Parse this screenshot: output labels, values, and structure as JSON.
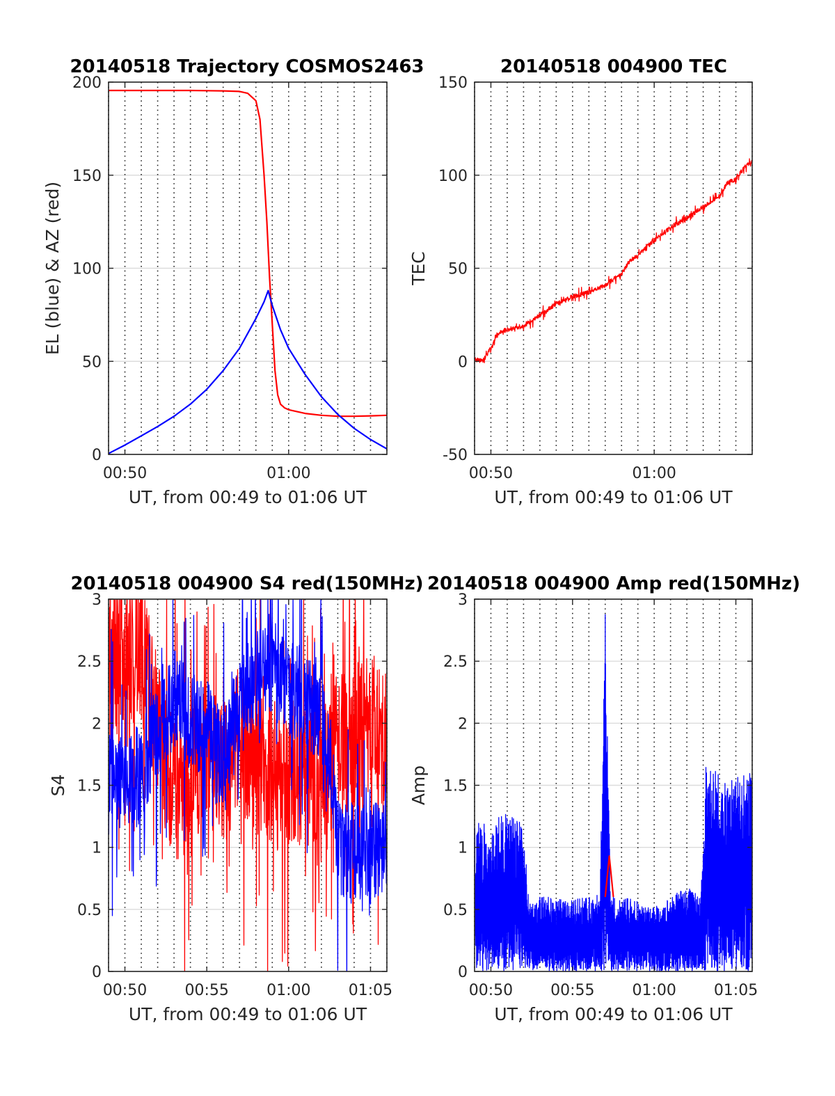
{
  "chart_data": [
    {
      "type": "line",
      "title": "20140518 Trajectory COSMOS2463",
      "xlabel": "UT, from 00:49 to 01:06 UT",
      "ylabel": "EL (blue) & AZ (red)",
      "xlim": [
        "00:49:00",
        "01:06:00"
      ],
      "ylim": [
        0,
        200
      ],
      "yticks": [
        0,
        50,
        100,
        150,
        200
      ],
      "xticks": [
        {
          "t": "00:50:00",
          "label": "00:50"
        },
        {
          "t": "01:00:00",
          "label": "01:00"
        }
      ],
      "grid": "dotted vertical lines each minute, light horizontal lines at y ticks",
      "series": [
        {
          "color": "#ff0000",
          "points": [
            [
              "00:49:00",
              195.5
            ],
            [
              "00:50:00",
              195.5
            ],
            [
              "00:52:00",
              195.5
            ],
            [
              "00:54:00",
              195.5
            ],
            [
              "00:55:00",
              195.4
            ],
            [
              "00:56:00",
              195.3
            ],
            [
              "00:57:00",
              195
            ],
            [
              "00:57:30",
              194
            ],
            [
              "00:58:00",
              190
            ],
            [
              "00:58:15",
              180
            ],
            [
              "00:58:30",
              150
            ],
            [
              "00:58:40",
              125
            ],
            [
              "00:58:50",
              95
            ],
            [
              "00:59:00",
              70
            ],
            [
              "00:59:10",
              45
            ],
            [
              "00:59:20",
              32
            ],
            [
              "00:59:30",
              27
            ],
            [
              "00:59:45",
              25
            ],
            [
              "01:00:00",
              24
            ],
            [
              "01:01:00",
              22
            ],
            [
              "01:02:00",
              21
            ],
            [
              "01:03:00",
              20.5
            ],
            [
              "01:04:00",
              20.5
            ],
            [
              "01:05:00",
              20.7
            ],
            [
              "01:06:00",
              21
            ]
          ]
        },
        {
          "color": "#0000ff",
          "points": [
            [
              "00:49:00",
              0.5
            ],
            [
              "00:50:00",
              5
            ],
            [
              "00:51:00",
              10
            ],
            [
              "00:52:00",
              15
            ],
            [
              "00:53:00",
              20.5
            ],
            [
              "00:54:00",
              27
            ],
            [
              "00:55:00",
              35
            ],
            [
              "00:56:00",
              45
            ],
            [
              "00:57:00",
              57
            ],
            [
              "00:58:00",
              73
            ],
            [
              "00:58:30",
              82
            ],
            [
              "00:58:45",
              88
            ],
            [
              "00:59:00",
              80
            ],
            [
              "00:59:30",
              67
            ],
            [
              "01:00:00",
              57
            ],
            [
              "01:01:00",
              43
            ],
            [
              "01:02:00",
              31
            ],
            [
              "01:03:00",
              21.5
            ],
            [
              "01:04:00",
              14
            ],
            [
              "01:05:00",
              8
            ],
            [
              "01:06:00",
              3
            ]
          ]
        }
      ]
    },
    {
      "type": "line",
      "title": "20140518 004900 TEC",
      "xlabel": "UT, from 00:49 to 01:06 UT",
      "ylabel": "TEC",
      "xlim": [
        "00:49:00",
        "01:06:00"
      ],
      "ylim": [
        -50,
        150
      ],
      "yticks": [
        -50,
        0,
        50,
        100,
        150
      ],
      "xticks": [
        {
          "t": "00:50:00",
          "label": "00:50"
        },
        {
          "t": "01:00:00",
          "label": "01:00"
        }
      ],
      "grid": "dotted vertical lines each minute, light horizontal lines at y ticks",
      "series": [
        {
          "color": "#ff0000",
          "noise": 1.2,
          "points": [
            [
              "00:49:00",
              1
            ],
            [
              "00:49:30",
              0
            ],
            [
              "00:50:00",
              7
            ],
            [
              "00:50:20",
              14
            ],
            [
              "00:50:40",
              16
            ],
            [
              "00:51:00",
              17
            ],
            [
              "00:52:00",
              19
            ],
            [
              "00:53:00",
              25
            ],
            [
              "00:54:00",
              31
            ],
            [
              "00:55:00",
              35
            ],
            [
              "00:56:00",
              37
            ],
            [
              "00:57:00",
              41
            ],
            [
              "00:58:00",
              47
            ],
            [
              "00:58:30",
              54
            ],
            [
              "00:59:00",
              57
            ],
            [
              "01:00:00",
              65
            ],
            [
              "01:01:00",
              72
            ],
            [
              "01:02:00",
              77
            ],
            [
              "01:03:00",
              83
            ],
            [
              "01:04:00",
              89
            ],
            [
              "01:04:30",
              96
            ],
            [
              "01:05:00",
              98
            ],
            [
              "01:05:30",
              104
            ],
            [
              "01:06:00",
              107
            ]
          ]
        }
      ]
    },
    {
      "type": "line",
      "title": "20140518 004900 S4 red(150MHz)",
      "xlabel": "UT, from 00:49 to 01:06 UT",
      "ylabel": "S4",
      "xlim": [
        "00:49:00",
        "01:06:00"
      ],
      "ylim": [
        0,
        3
      ],
      "yticks": [
        0,
        0.5,
        1,
        1.5,
        2,
        2.5,
        3
      ],
      "xticks": [
        {
          "t": "00:50:00",
          "label": "00:50"
        },
        {
          "t": "00:55:00",
          "label": "00:55"
        },
        {
          "t": "01:00:00",
          "label": "01:00"
        },
        {
          "t": "01:05:00",
          "label": "01:05"
        }
      ],
      "grid": "dotted vertical lines each minute, light horizontal lines at y ticks",
      "series": [
        {
          "color": "#ff0000",
          "noise": 0.6,
          "points": [
            [
              "00:49:00",
              2.4
            ],
            [
              "00:50:00",
              2.6
            ],
            [
              "00:51:00",
              2.6
            ],
            [
              "00:52:00",
              1.9
            ],
            [
              "00:53:00",
              1.5
            ],
            [
              "00:54:00",
              1.5
            ],
            [
              "00:55:00",
              1.8
            ],
            [
              "00:56:00",
              1.6
            ],
            [
              "00:57:00",
              1.9
            ],
            [
              "00:58:00",
              1.7
            ],
            [
              "00:59:00",
              1.6
            ],
            [
              "01:00:00",
              1.5
            ],
            [
              "01:01:00",
              1.6
            ],
            [
              "01:02:00",
              1.4
            ],
            [
              "01:02:30",
              1.8
            ],
            [
              "01:03:00",
              1.8
            ],
            [
              "01:04:00",
              1.8
            ],
            [
              "01:05:00",
              2.0
            ],
            [
              "01:06:00",
              1.8
            ]
          ]
        },
        {
          "color": "#0000ff",
          "noise": 0.4,
          "points": [
            [
              "00:49:00",
              1.6
            ],
            [
              "00:50:00",
              1.5
            ],
            [
              "00:51:00",
              1.6
            ],
            [
              "00:52:00",
              2.0
            ],
            [
              "00:53:00",
              2.2
            ],
            [
              "00:54:00",
              2.0
            ],
            [
              "00:55:00",
              2.0
            ],
            [
              "00:56:00",
              1.7
            ],
            [
              "00:57:00",
              2.1
            ],
            [
              "00:58:00",
              2.4
            ],
            [
              "00:59:00",
              2.5
            ],
            [
              "01:00:00",
              2.3
            ],
            [
              "01:01:00",
              2.2
            ],
            [
              "01:02:00",
              2.1
            ],
            [
              "01:02:40",
              1.6
            ],
            [
              "01:03:00",
              1.0
            ],
            [
              "01:04:00",
              0.95
            ],
            [
              "01:05:00",
              0.95
            ],
            [
              "01:06:00",
              1.0
            ]
          ]
        }
      ]
    },
    {
      "type": "line",
      "title": "20140518 004900 Amp red(150MHz)",
      "xlabel": "UT, from 00:49 to 01:06 UT",
      "ylabel": "Amp",
      "xlim": [
        "00:49:00",
        "01:06:00"
      ],
      "ylim": [
        0,
        3
      ],
      "yticks": [
        0,
        0.5,
        1,
        1.5,
        2,
        2.5,
        3
      ],
      "xticks": [
        {
          "t": "00:50:00",
          "label": "00:50"
        },
        {
          "t": "00:55:00",
          "label": "00:55"
        },
        {
          "t": "01:00:00",
          "label": "01:00"
        },
        {
          "t": "01:05:00",
          "label": "01:05"
        }
      ],
      "grid": "dotted vertical lines each minute, light horizontal lines at y ticks",
      "series": [
        {
          "color": "#0000ff",
          "fill_to_zero": true,
          "points": [
            [
              "00:49:00",
              1.2
            ],
            [
              "00:50:00",
              1.2
            ],
            [
              "00:51:00",
              1.3
            ],
            [
              "00:52:00",
              1.2
            ],
            [
              "00:52:20",
              0.6
            ],
            [
              "00:53:00",
              0.6
            ],
            [
              "00:54:00",
              0.6
            ],
            [
              "00:55:00",
              0.58
            ],
            [
              "00:56:00",
              0.6
            ],
            [
              "00:56:40",
              0.62
            ],
            [
              "00:57:00",
              2.9
            ],
            [
              "00:57:20",
              0.62
            ],
            [
              "00:58:00",
              0.6
            ],
            [
              "00:59:00",
              0.57
            ],
            [
              "01:00:00",
              0.52
            ],
            [
              "01:01:00",
              0.6
            ],
            [
              "01:02:00",
              0.68
            ],
            [
              "01:02:50",
              0.6
            ],
            [
              "01:03:10",
              1.65
            ],
            [
              "01:04:00",
              1.6
            ],
            [
              "01:05:00",
              1.6
            ],
            [
              "01:06:00",
              1.6
            ]
          ]
        },
        {
          "color": "#ff0000",
          "points": [
            [
              "00:57:00",
              0.6
            ],
            [
              "00:57:15",
              0.93
            ],
            [
              "00:57:30",
              0.6
            ]
          ]
        }
      ]
    }
  ]
}
